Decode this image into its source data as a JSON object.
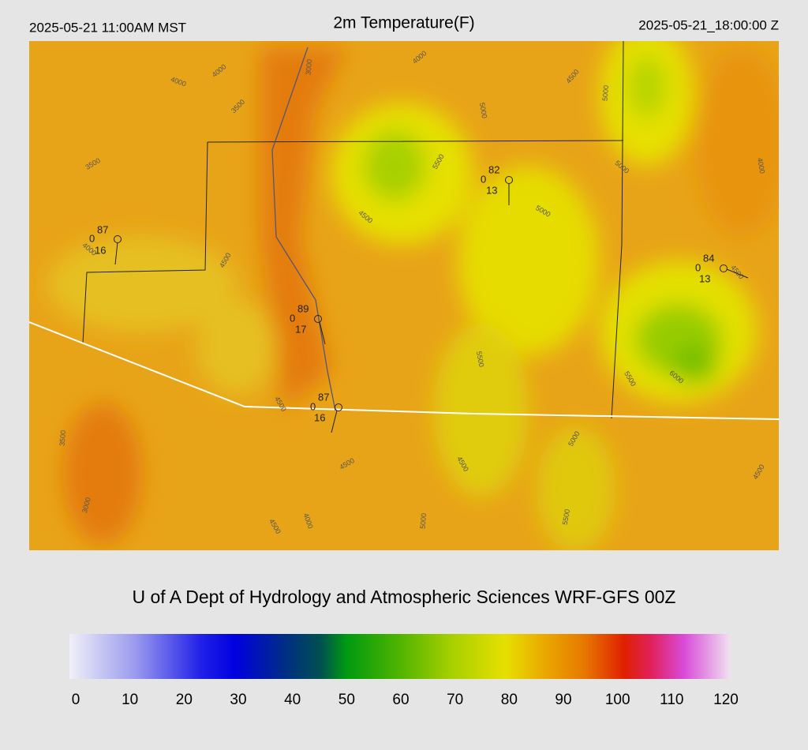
{
  "header": {
    "left": "2025-05-21 11:00AM MST",
    "title": "2m Temperature(F)",
    "right": "2025-05-21_18:00:00 Z"
  },
  "contour_labels": [
    "4000",
    "4000",
    "3000",
    "3500",
    "4000",
    "4500",
    "5000",
    "5000",
    "5500",
    "5000",
    "4000",
    "3500",
    "4500",
    "5000",
    "4500",
    "4500",
    "4000",
    "5500",
    "5500",
    "6000",
    "4500",
    "5000",
    "3500",
    "4500",
    "4500",
    "4500",
    "3000",
    "4000",
    "4500",
    "5000",
    "5500"
  ],
  "stations": [
    {
      "temp": 87,
      "mid": 0,
      "dew": 16
    },
    {
      "temp": 82,
      "mid": 0,
      "dew": 13
    },
    {
      "temp": 84,
      "mid": 0,
      "dew": 13
    },
    {
      "temp": 89,
      "mid": 0,
      "dew": 17
    },
    {
      "temp": 87,
      "mid": 0,
      "dew": 16
    }
  ],
  "footer": "U of A Dept of Hydrology and Atmospheric Sciences WRF-GFS 00Z",
  "colorbar": {
    "range": [
      0,
      120
    ],
    "ticks": [
      0,
      10,
      20,
      30,
      40,
      50,
      60,
      70,
      80,
      90,
      100,
      110,
      120
    ]
  }
}
